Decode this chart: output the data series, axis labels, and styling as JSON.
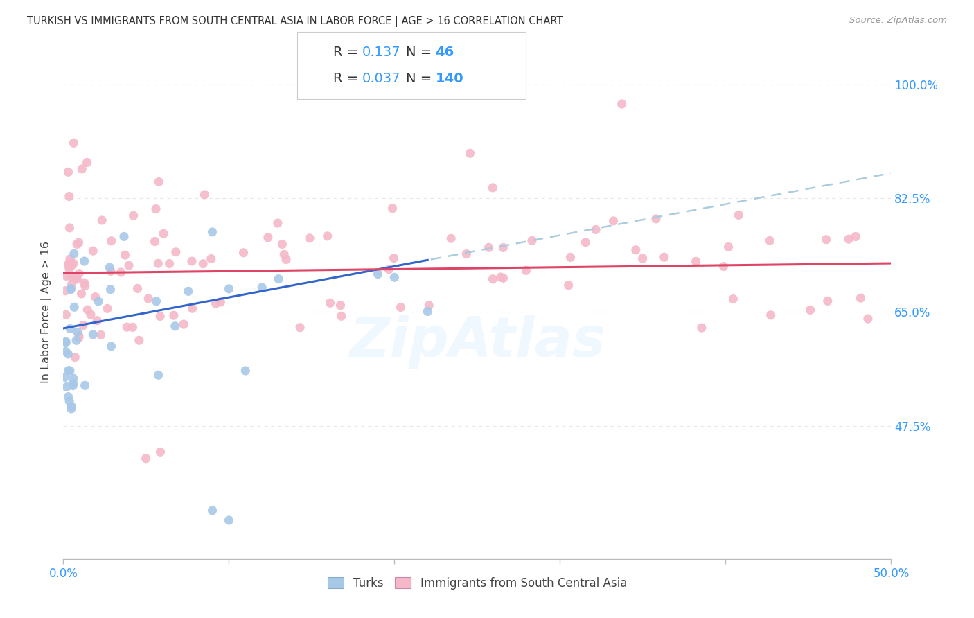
{
  "title": "TURKISH VS IMMIGRANTS FROM SOUTH CENTRAL ASIA IN LABOR FORCE | AGE > 16 CORRELATION CHART",
  "source": "Source: ZipAtlas.com",
  "ylabel": "In Labor Force | Age > 16",
  "xlim": [
    0.0,
    0.5
  ],
  "ylim": [
    0.27,
    1.03
  ],
  "xticks": [
    0.0,
    0.1,
    0.2,
    0.3,
    0.4,
    0.5
  ],
  "xticklabels": [
    "0.0%",
    "",
    "",
    "",
    "",
    "50.0%"
  ],
  "yticks": [
    0.475,
    0.65,
    0.825,
    1.0
  ],
  "yticklabels": [
    "47.5%",
    "65.0%",
    "82.5%",
    "100.0%"
  ],
  "turks_color": "#a8c8e8",
  "immigrants_color": "#f4b8c8",
  "trend_turks_color": "#3366cc",
  "trend_immigrants_color": "#dd4466",
  "trend_dashed_color": "#aaccdd",
  "background_color": "#ffffff",
  "grid_color": "#e8e8e8",
  "watermark": "ZipAtlas",
  "legend1_label": "Turks",
  "legend2_label": "Immigrants from South Central Asia",
  "turks_R": "0.137",
  "turks_N": "46",
  "immigrants_R": "0.037",
  "immigrants_N": "140",
  "title_color": "#333333",
  "source_color": "#999999",
  "axis_tick_color": "#3399ff",
  "ylabel_color": "#444444"
}
